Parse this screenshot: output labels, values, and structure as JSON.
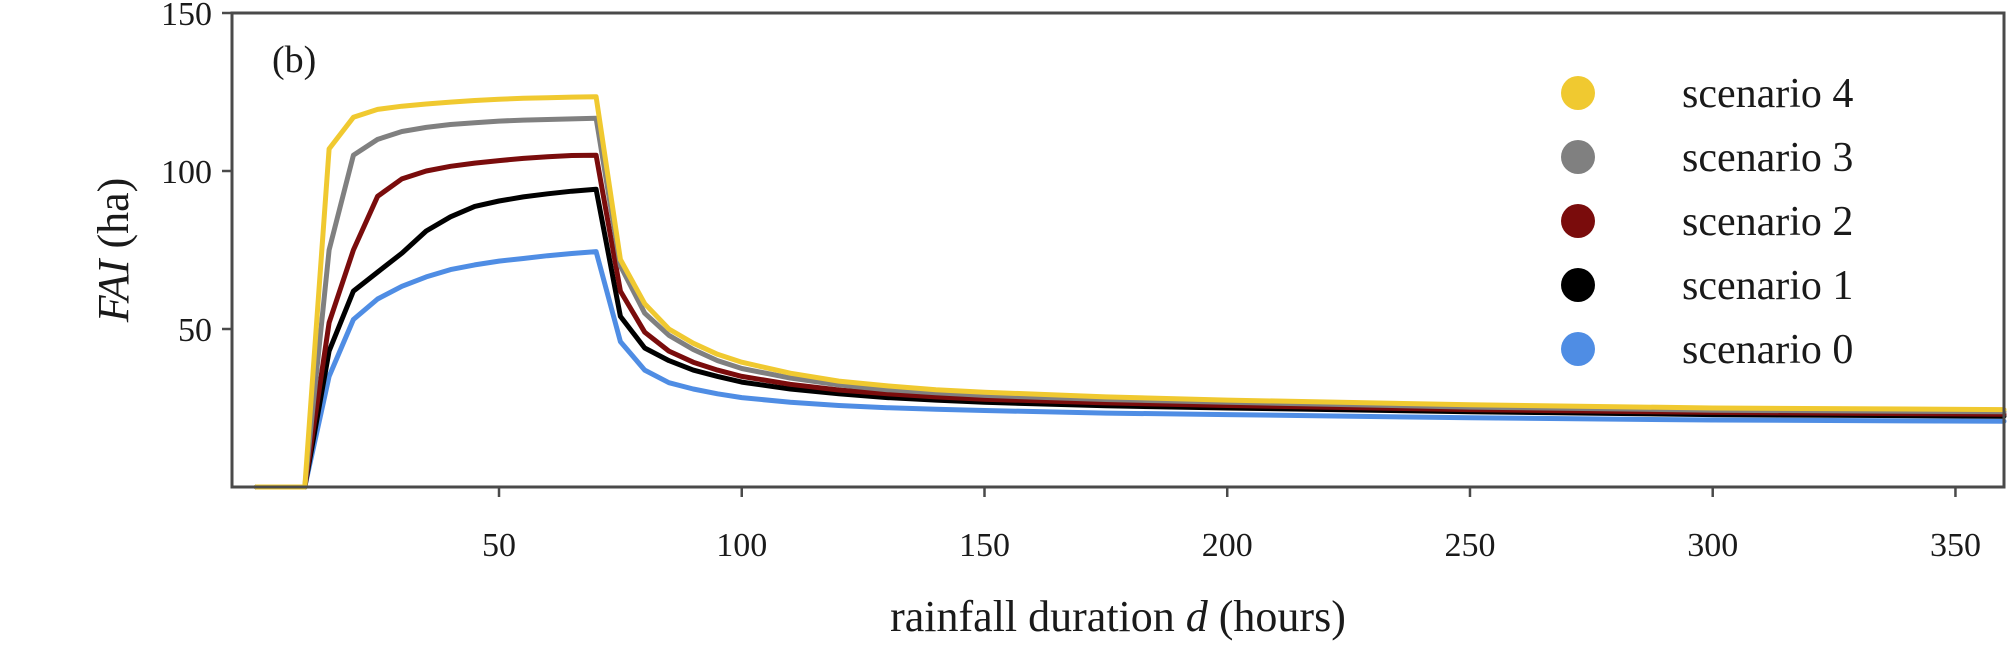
{
  "chart_data": {
    "type": "line",
    "panel_label": "(b)",
    "ylabel_italic": "FAI",
    "ylabel_unit": " (ha)",
    "xlabel_prefix": "rainfall duration ",
    "xlabel_var": "d",
    "xlabel_suffix": " (hours)",
    "xlim": [
      -5,
      360
    ],
    "ylim": [
      0,
      150
    ],
    "x_ticks": [
      50,
      100,
      150,
      200,
      250,
      300,
      350
    ],
    "y_ticks": [
      50,
      100,
      150
    ],
    "grid": false,
    "legend_position": "top-right",
    "x": [
      0,
      10,
      15,
      20,
      25,
      30,
      35,
      40,
      45,
      50,
      55,
      60,
      65,
      70,
      75,
      80,
      85,
      90,
      95,
      100,
      110,
      120,
      130,
      140,
      150,
      175,
      200,
      250,
      300,
      360
    ],
    "series": [
      {
        "name": "scenario 4",
        "color": "#f0c930",
        "values": [
          0,
          0,
          107,
          117,
          119.5,
          120.5,
          121.2,
          121.8,
          122.3,
          122.7,
          123,
          123.2,
          123.4,
          123.5,
          72,
          58,
          50,
          45.5,
          42,
          39.5,
          36,
          33.5,
          32,
          30.8,
          30,
          28.5,
          27.5,
          26,
          25,
          24.5
        ]
      },
      {
        "name": "scenario 3",
        "color": "#808080",
        "values": [
          0,
          0,
          75,
          105,
          110,
          112.5,
          113.8,
          114.7,
          115.3,
          115.8,
          116.1,
          116.3,
          116.5,
          116.7,
          70,
          55,
          48,
          43.5,
          40,
          37.5,
          34.5,
          32.3,
          30.8,
          29.8,
          29,
          27.7,
          26.8,
          25.3,
          24.3,
          23.8
        ]
      },
      {
        "name": "scenario 2",
        "color": "#7a0c0c",
        "values": [
          0,
          0,
          52,
          75,
          92,
          97.5,
          100,
          101.5,
          102.5,
          103.3,
          104,
          104.5,
          104.9,
          105,
          62,
          49,
          43,
          39.5,
          37,
          35,
          32.5,
          30.7,
          29.5,
          28.5,
          27.8,
          26.6,
          25.8,
          24.5,
          23.6,
          23
        ]
      },
      {
        "name": "scenario 1",
        "color": "#000000",
        "values": [
          0,
          0,
          43,
          62,
          68,
          74,
          81,
          85.5,
          88.8,
          90.5,
          91.8,
          92.8,
          93.6,
          94.2,
          54,
          44,
          40,
          37,
          35,
          33.2,
          31,
          29.5,
          28.3,
          27.5,
          26.8,
          25.7,
          25,
          23.8,
          22.9,
          22.4
        ]
      },
      {
        "name": "scenario 0",
        "color": "#4f8de4",
        "values": [
          0,
          0,
          35,
          53,
          59.5,
          63.5,
          66.5,
          68.8,
          70.3,
          71.5,
          72.3,
          73.2,
          73.9,
          74.5,
          46,
          37,
          33,
          31,
          29.5,
          28.3,
          26.8,
          25.8,
          25.1,
          24.6,
          24.2,
          23.4,
          22.9,
          21.9,
          21.2,
          20.8
        ]
      }
    ]
  }
}
